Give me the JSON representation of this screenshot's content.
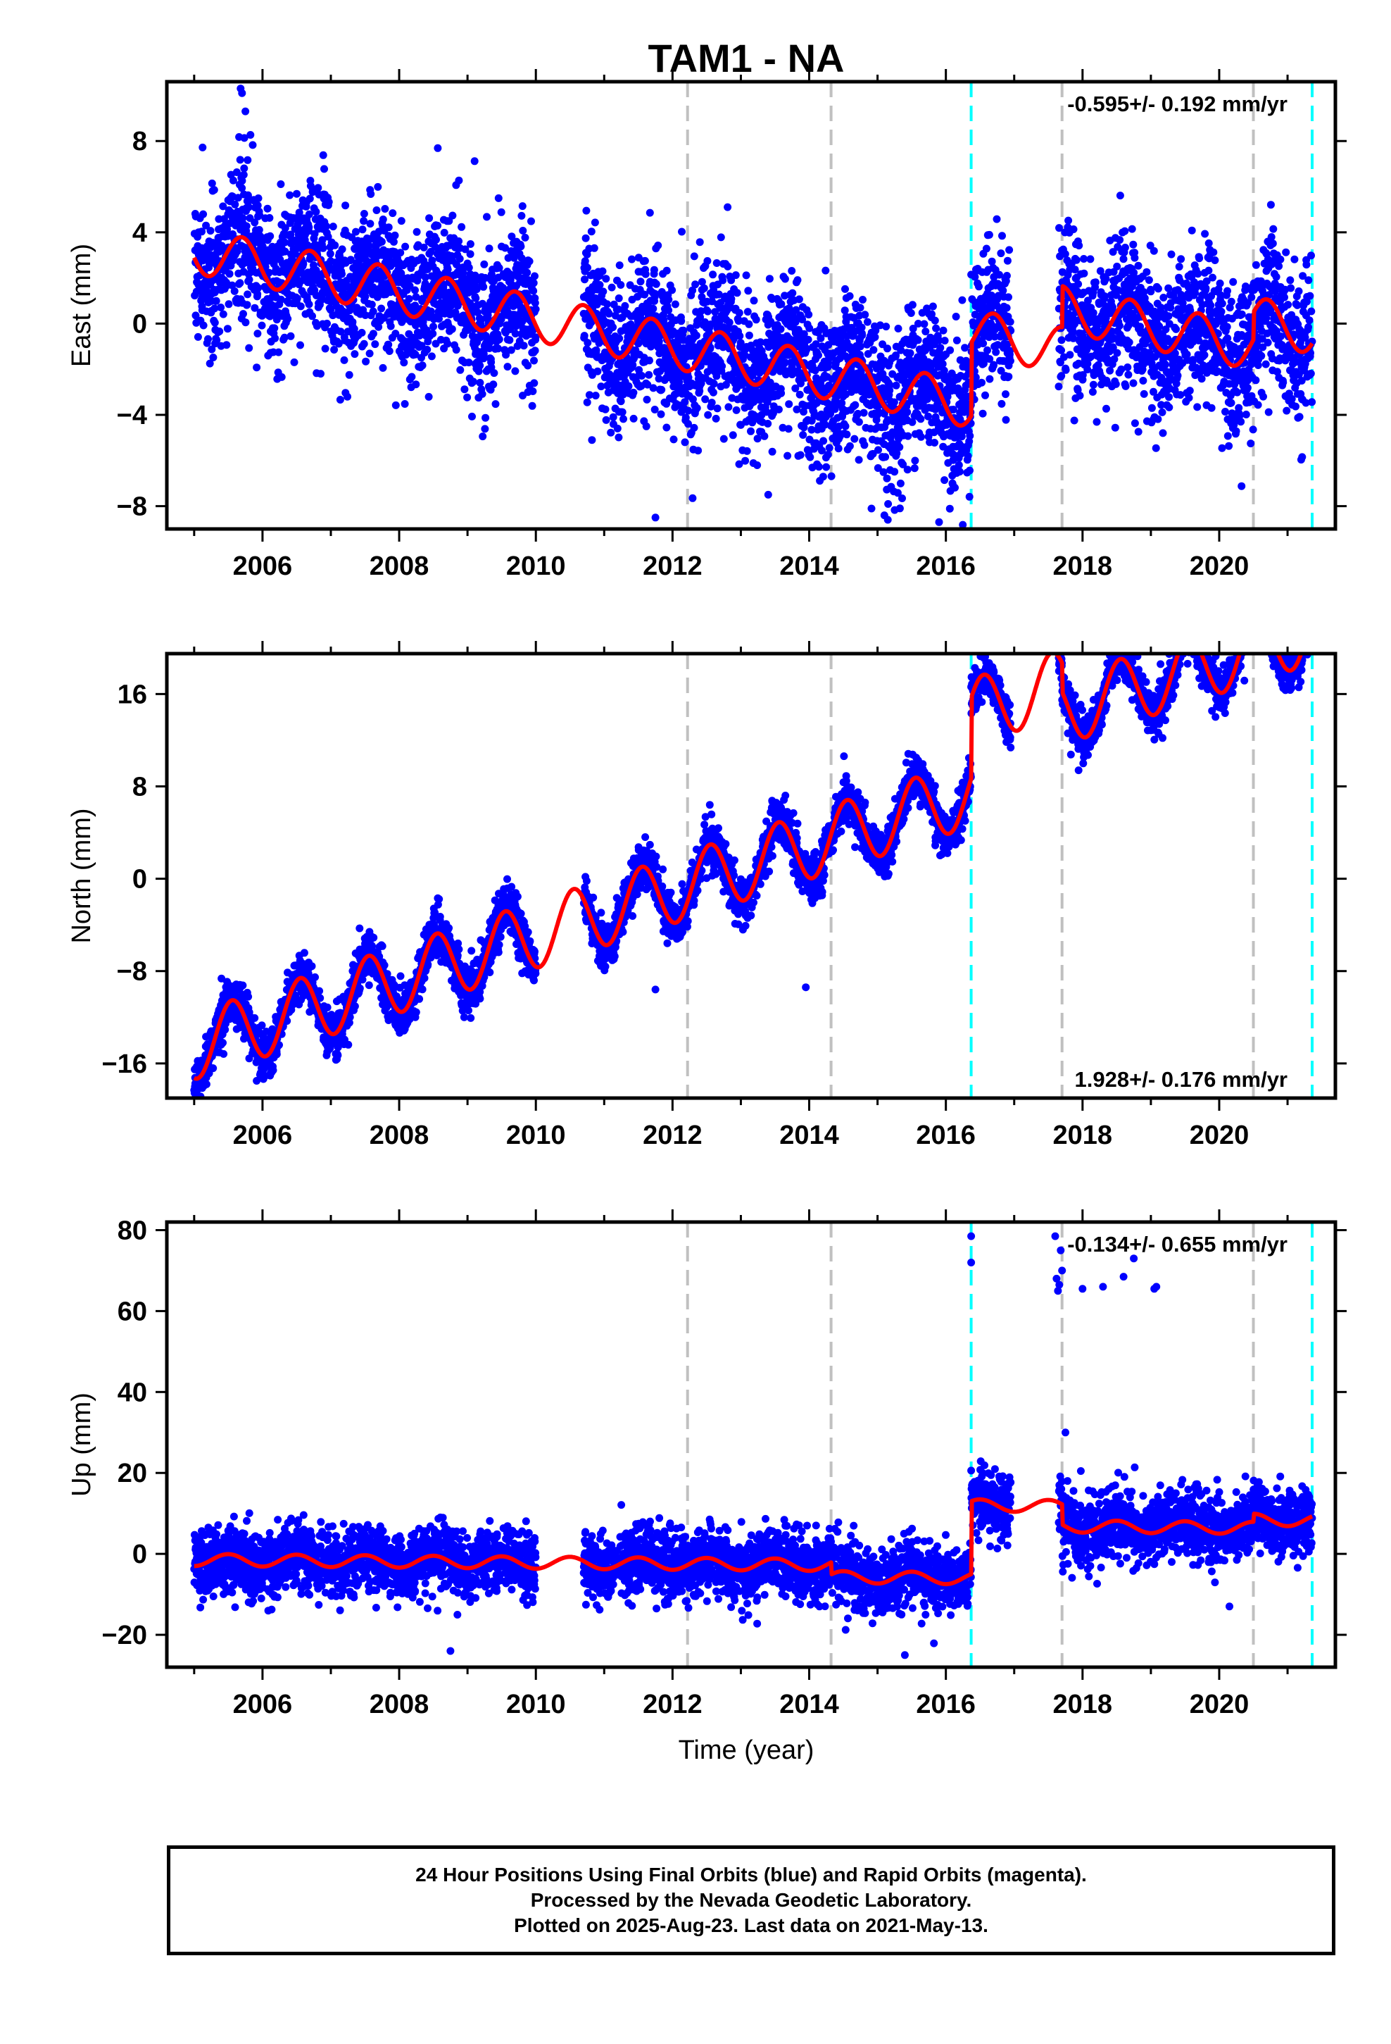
{
  "title": "TAM1 - NA",
  "xlabel": "Time (year)",
  "colors": {
    "points": "#0000ff",
    "model": "#ff0000",
    "equipment_change": "#c0c0c0",
    "earthquake": "#00ffff",
    "axes": "#000000"
  },
  "footer": {
    "line1": "24 Hour Positions Using Final Orbits (blue) and Rapid Orbits (magenta).",
    "line2": "Processed by the Nevada Geodetic Laboratory.",
    "line3": "Plotted on 2025-Aug-23. Last data on 2021-May-13."
  },
  "events": {
    "gray_dashed": [
      2012.22,
      2014.32,
      2017.7,
      2020.5
    ],
    "cyan_dashed": [
      2016.37,
      2021.36
    ]
  },
  "chart_data": [
    {
      "type": "scatter",
      "panel": "east",
      "ylabel": "East (mm)",
      "rate_text": "-0.595+/- 0.192 mm/yr",
      "rate_position": "top-right",
      "xlim": [
        2004.6,
        2021.7
      ],
      "ylim": [
        -9,
        10.6
      ],
      "xticks": [
        2006,
        2008,
        2010,
        2012,
        2014,
        2016,
        2018,
        2020
      ],
      "yticks": [
        -8,
        -4,
        0,
        4,
        8
      ],
      "data_span": [
        2005.0,
        2021.36
      ],
      "gaps": [
        [
          2010.0,
          2010.7
        ],
        [
          2016.95,
          2017.65
        ]
      ],
      "rate": -0.595,
      "offset": 3.2,
      "annual_amplitude": 1.0,
      "annual_peak": 0.7,
      "steps": [
        [
          2016.37,
          3.2
        ],
        [
          2017.7,
          1.8
        ],
        [
          2020.5,
          1.2
        ]
      ],
      "noise": 1.6,
      "outliers": [
        [
          2005.68,
          10.3
        ],
        [
          2005.7,
          10.1
        ],
        [
          2005.75,
          9.3
        ],
        [
          2011.75,
          -8.5
        ],
        [
          2015.1,
          -8.4
        ],
        [
          2015.15,
          -8.6
        ],
        [
          2015.9,
          -8.7
        ],
        [
          2013.4,
          -7.5
        ]
      ]
    },
    {
      "type": "scatter",
      "panel": "north",
      "ylabel": "North (mm)",
      "rate_text": "1.928+/- 0.176 mm/yr",
      "rate_position": "bottom-right",
      "xlim": [
        2004.6,
        2021.7
      ],
      "ylim": [
        -19,
        19.5
      ],
      "xticks": [
        2006,
        2008,
        2010,
        2012,
        2014,
        2016,
        2018,
        2020
      ],
      "yticks": [
        -16,
        -8,
        0,
        8,
        16
      ],
      "data_span": [
        2005.0,
        2021.36
      ],
      "gaps": [
        [
          2010.0,
          2010.7
        ],
        [
          2016.95,
          2017.65
        ]
      ],
      "rate": 1.928,
      "offset": -14.5,
      "annual_amplitude": 2.9,
      "annual_peak": 0.55,
      "steps": [
        [
          2016.37,
          7.0
        ],
        [
          2017.7,
          -2.5
        ]
      ],
      "noise": 1.0,
      "outliers": [
        [
          2013.95,
          -9.4
        ],
        [
          2011.75,
          -9.6
        ]
      ]
    },
    {
      "type": "scatter",
      "panel": "up",
      "ylabel": "Up (mm)",
      "rate_text": "-0.134+/- 0.655 mm/yr",
      "rate_position": "top-right",
      "xlim": [
        2004.6,
        2021.7
      ],
      "ylim": [
        -28,
        82
      ],
      "xticks": [
        2006,
        2008,
        2010,
        2012,
        2014,
        2016,
        2018,
        2020
      ],
      "yticks": [
        -20,
        0,
        20,
        40,
        60,
        80
      ],
      "data_span": [
        2005.0,
        2021.36
      ],
      "gaps": [
        [
          2010.0,
          2010.7
        ],
        [
          2016.95,
          2017.65
        ]
      ],
      "rate": -0.134,
      "offset": -1.5,
      "annual_amplitude": 1.5,
      "annual_peak": 0.5,
      "steps": [
        [
          2014.32,
          -3.0
        ],
        [
          2016.37,
          18.0
        ],
        [
          2017.7,
          -5.0
        ],
        [
          2020.5,
          2.0
        ]
      ],
      "noise": 4.0,
      "outliers": [
        [
          2016.37,
          78.5
        ],
        [
          2016.37,
          72.0
        ],
        [
          2017.6,
          78.5
        ],
        [
          2017.62,
          68.0
        ],
        [
          2017.64,
          65.0
        ],
        [
          2017.66,
          66.5
        ],
        [
          2017.68,
          75.0
        ],
        [
          2017.7,
          70.0
        ],
        [
          2018.0,
          65.5
        ],
        [
          2018.3,
          66.0
        ],
        [
          2018.6,
          68.5
        ],
        [
          2018.75,
          73.0
        ],
        [
          2019.05,
          65.5
        ],
        [
          2019.08,
          66.0
        ],
        [
          2017.75,
          30.0
        ],
        [
          2008.75,
          -24.0
        ],
        [
          2020.15,
          -13.0
        ],
        [
          2015.4,
          -25.0
        ]
      ]
    }
  ]
}
